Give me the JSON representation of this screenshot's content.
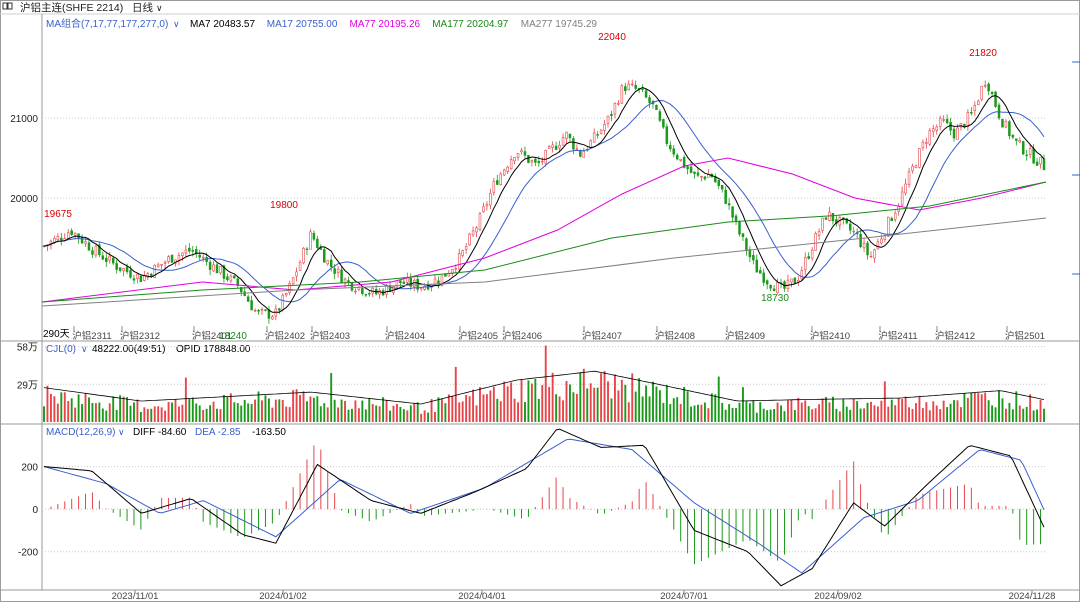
{
  "header": {
    "title": "沪铝主连(SHFE 2214)",
    "period": "日线"
  },
  "ma_legend": {
    "group": "MA组合(7,17,77,177,277,0)",
    "items": [
      {
        "label": "MA7 20483.57",
        "color": "#000000"
      },
      {
        "label": "MA17 20755.00",
        "color": "#3a5fcd"
      },
      {
        "label": "MA77 20195.26",
        "color": "#e000e0"
      },
      {
        "label": "MA177 20204.97",
        "color": "#1a8a1a"
      },
      {
        "label": "MA277 19745.29",
        "color": "#808080"
      }
    ]
  },
  "vol_legend": {
    "name": "CJL(0)",
    "value": "48222.00(49:51)",
    "opid": "OPID 178848.00"
  },
  "macd_legend": {
    "name": "MACD(12,26,9)",
    "diff": "DIFF -84.60",
    "dea": "DEA -2.85",
    "macd": "-163.50"
  },
  "colors": {
    "up": "#e8454a",
    "down": "#1a9a1a",
    "grid": "#c8c8c8",
    "axis": "#555555"
  },
  "chart_data": [
    {
      "type": "candlestick",
      "title": "沪铝主连(SHFE 2214) 日线",
      "price_range": [
        18500,
        22300
      ],
      "y_ticks": [
        20000,
        21000
      ],
      "days_label": "290天",
      "month_labels": [
        "沪铝2311",
        "沪铝2312",
        "沪铝2401",
        "沪铝2402",
        "沪铝2403",
        "沪铝2404",
        "沪铝2405",
        "沪铝2406",
        "沪铝2407",
        "沪铝2408",
        "沪铝2409",
        "沪铝2410",
        "沪铝2411",
        "沪铝2412",
        "沪铝2501"
      ],
      "annotations": [
        {
          "label": "19675",
          "value": 19675
        },
        {
          "label": "19800",
          "value": 19800
        },
        {
          "label": "18240",
          "value": 18240
        },
        {
          "label": "22040",
          "value": 22040
        },
        {
          "label": "18730",
          "value": 18730
        },
        {
          "label": "21820",
          "value": 21820
        }
      ],
      "price_path": [
        {
          "x": "2023/09/15",
          "y": 19400
        },
        {
          "x": "2023/09/22",
          "y": 19500
        },
        {
          "x": "2023/09/28",
          "y": 19600
        },
        {
          "x": "2023/10/09",
          "y": 19350
        },
        {
          "x": "2023/10/20",
          "y": 19150
        },
        {
          "x": "2023/11/01",
          "y": 19000
        },
        {
          "x": "2023/11/15",
          "y": 19250
        },
        {
          "x": "2023/11/25",
          "y": 19350
        },
        {
          "x": "2023/12/08",
          "y": 19100
        },
        {
          "x": "2023/12/18",
          "y": 18900
        },
        {
          "x": "2023/12/27",
          "y": 18550
        },
        {
          "x": "2024/01/05",
          "y": 18550
        },
        {
          "x": "2024/01/12",
          "y": 18900
        },
        {
          "x": "2024/01/22",
          "y": 19550
        },
        {
          "x": "2024/01/30",
          "y": 19200
        },
        {
          "x": "2024/02/08",
          "y": 18950
        },
        {
          "x": "2024/02/22",
          "y": 18800
        },
        {
          "x": "2024/03/05",
          "y": 18950
        },
        {
          "x": "2024/03/15",
          "y": 18900
        },
        {
          "x": "2024/03/25",
          "y": 19000
        },
        {
          "x": "2024/04/03",
          "y": 19250
        },
        {
          "x": "2024/04/12",
          "y": 19700
        },
        {
          "x": "2024/04/20",
          "y": 20200
        },
        {
          "x": "2024/04/30",
          "y": 20600
        },
        {
          "x": "2024/05/10",
          "y": 20400
        },
        {
          "x": "2024/05/17",
          "y": 20600
        },
        {
          "x": "2024/05/24",
          "y": 20800
        },
        {
          "x": "2024/05/31",
          "y": 20550
        },
        {
          "x": "2024/06/07",
          "y": 20750
        },
        {
          "x": "2024/06/14",
          "y": 21000
        },
        {
          "x": "2024/06/21",
          "y": 21400
        },
        {
          "x": "2024/06/28",
          "y": 21350
        },
        {
          "x": "2024/07/05",
          "y": 21150
        },
        {
          "x": "2024/07/12",
          "y": 20700
        },
        {
          "x": "2024/07/19",
          "y": 20450
        },
        {
          "x": "2024/07/26",
          "y": 20250
        },
        {
          "x": "2024/08/02",
          "y": 20300
        },
        {
          "x": "2024/08/09",
          "y": 20000
        },
        {
          "x": "2024/08/16",
          "y": 19550
        },
        {
          "x": "2024/08/23",
          "y": 19150
        },
        {
          "x": "2024/08/30",
          "y": 18950
        },
        {
          "x": "2024/09/06",
          "y": 18850
        },
        {
          "x": "2024/09/13",
          "y": 19000
        },
        {
          "x": "2024/09/20",
          "y": 19400
        },
        {
          "x": "2024/09/27",
          "y": 19800
        },
        {
          "x": "2024/10/11",
          "y": 19550
        },
        {
          "x": "2024/10/18",
          "y": 19250
        },
        {
          "x": "2024/10/25",
          "y": 19600
        },
        {
          "x": "2024/11/01",
          "y": 19950
        },
        {
          "x": "2024/11/08",
          "y": 20400
        },
        {
          "x": "2024/11/15",
          "y": 20800
        },
        {
          "x": "2024/11/22",
          "y": 20950
        },
        {
          "x": "2024/11/28",
          "y": 20800
        },
        {
          "x": "2024/12/06",
          "y": 21050
        },
        {
          "x": "2024/12/13",
          "y": 21500
        },
        {
          "x": "2024/12/20",
          "y": 21000
        },
        {
          "x": "2024/12/27",
          "y": 20700
        },
        {
          "x": "2025/01/03",
          "y": 20550
        },
        {
          "x": "2025/01/10",
          "y": 20400
        }
      ],
      "ma_lines": [
        {
          "name": "MA77",
          "color": "#e000e0",
          "points": [
            {
              "x": "2023/09/15",
              "y": 18700
            },
            {
              "x": "2023/12/01",
              "y": 18950
            },
            {
              "x": "2024/01/15",
              "y": 18850
            },
            {
              "x": "2024/03/01",
              "y": 18950
            },
            {
              "x": "2024/04/15",
              "y": 19250
            },
            {
              "x": "2024/05/20",
              "y": 19600
            },
            {
              "x": "2024/06/20",
              "y": 20050
            },
            {
              "x": "2024/07/20",
              "y": 20400
            },
            {
              "x": "2024/08/10",
              "y": 20500
            },
            {
              "x": "2024/09/10",
              "y": 20300
            },
            {
              "x": "2024/10/10",
              "y": 20000
            },
            {
              "x": "2024/11/10",
              "y": 19850
            },
            {
              "x": "2024/12/10",
              "y": 20000
            },
            {
              "x": "2025/01/10",
              "y": 20200
            }
          ]
        },
        {
          "name": "MA177",
          "color": "#1a8a1a",
          "points": [
            {
              "x": "2023/09/15",
              "y": 18700
            },
            {
              "x": "2023/12/01",
              "y": 18850
            },
            {
              "x": "2024/02/15",
              "y": 18950
            },
            {
              "x": "2024/04/15",
              "y": 19100
            },
            {
              "x": "2024/06/15",
              "y": 19500
            },
            {
              "x": "2024/08/10",
              "y": 19700
            },
            {
              "x": "2024/09/30",
              "y": 19780
            },
            {
              "x": "2024/11/15",
              "y": 19900
            },
            {
              "x": "2025/01/10",
              "y": 20200
            }
          ]
        },
        {
          "name": "MA277",
          "color": "#808080",
          "points": [
            {
              "x": "2023/09/15",
              "y": 18650
            },
            {
              "x": "2024/01/15",
              "y": 18850
            },
            {
              "x": "2024/04/15",
              "y": 18950
            },
            {
              "x": "2024/07/15",
              "y": 19250
            },
            {
              "x": "2024/10/15",
              "y": 19500
            },
            {
              "x": "2025/01/10",
              "y": 19750
            }
          ]
        }
      ]
    },
    {
      "type": "bar",
      "title": "CJL(0)",
      "y_ticks": [
        {
          "label": "29万",
          "value": 290000
        },
        {
          "label": "58万",
          "value": 580000
        }
      ],
      "volume_range": [
        0,
        600000
      ],
      "volume_path": [
        {
          "x": "2023/09/15",
          "y": 230000
        },
        {
          "x": "2023/11/01",
          "y": 140000
        },
        {
          "x": "2024/01/22",
          "y": 200000
        },
        {
          "x": "2024/03/15",
          "y": 120000
        },
        {
          "x": "2024/04/30",
          "y": 280000
        },
        {
          "x": "2024/06/07",
          "y": 340000
        },
        {
          "x": "2024/07/05",
          "y": 260000
        },
        {
          "x": "2024/08/15",
          "y": 140000
        },
        {
          "x": "2024/09/15",
          "y": 150000
        },
        {
          "x": "2024/11/01",
          "y": 160000
        },
        {
          "x": "2024/12/20",
          "y": 210000
        },
        {
          "x": "2025/01/10",
          "y": 150000
        }
      ]
    },
    {
      "type": "macd",
      "title": "MACD(12,26,9)",
      "y_ticks": [
        200,
        0,
        -200
      ],
      "range": [
        -380,
        400
      ],
      "dates": [
        "2023/11/01",
        "2024/01/02",
        "2024/04/01",
        "2024/07/01",
        "2024/09/02",
        "2024/11/28"
      ],
      "diff_path": [
        {
          "x": "2023/09/15",
          "y": 200
        },
        {
          "x": "2023/10/08",
          "y": 180
        },
        {
          "x": "2023/11/01",
          "y": -20
        },
        {
          "x": "2023/11/25",
          "y": 50
        },
        {
          "x": "2023/12/20",
          "y": -120
        },
        {
          "x": "2024/01/05",
          "y": -160
        },
        {
          "x": "2024/01/25",
          "y": 210
        },
        {
          "x": "2024/02/20",
          "y": 40
        },
        {
          "x": "2024/03/15",
          "y": -20
        },
        {
          "x": "2024/04/10",
          "y": 80
        },
        {
          "x": "2024/05/05",
          "y": 190
        },
        {
          "x": "2024/05/20",
          "y": 380
        },
        {
          "x": "2024/06/10",
          "y": 290
        },
        {
          "x": "2024/07/01",
          "y": 300
        },
        {
          "x": "2024/07/25",
          "y": -100
        },
        {
          "x": "2024/08/20",
          "y": -200
        },
        {
          "x": "2024/09/05",
          "y": -360
        },
        {
          "x": "2024/09/20",
          "y": -280
        },
        {
          "x": "2024/10/10",
          "y": 30
        },
        {
          "x": "2024/10/25",
          "y": -80
        },
        {
          "x": "2024/11/15",
          "y": 120
        },
        {
          "x": "2024/12/05",
          "y": 300
        },
        {
          "x": "2024/12/25",
          "y": 250
        },
        {
          "x": "2025/01/10",
          "y": -85
        }
      ],
      "dea_path": [
        {
          "x": "2023/09/15",
          "y": 200
        },
        {
          "x": "2023/10/15",
          "y": 120
        },
        {
          "x": "2023/11/10",
          "y": -20
        },
        {
          "x": "2023/12/01",
          "y": 40
        },
        {
          "x": "2024/01/05",
          "y": -130
        },
        {
          "x": "2024/02/05",
          "y": 140
        },
        {
          "x": "2024/03/10",
          "y": -20
        },
        {
          "x": "2024/04/15",
          "y": 100
        },
        {
          "x": "2024/05/25",
          "y": 330
        },
        {
          "x": "2024/06/25",
          "y": 280
        },
        {
          "x": "2024/07/25",
          "y": 30
        },
        {
          "x": "2024/08/25",
          "y": -160
        },
        {
          "x": "2024/09/15",
          "y": -300
        },
        {
          "x": "2024/10/15",
          "y": -40
        },
        {
          "x": "2024/11/10",
          "y": 40
        },
        {
          "x": "2024/12/10",
          "y": 280
        },
        {
          "x": "2024/12/30",
          "y": 230
        },
        {
          "x": "2025/01/10",
          "y": -3
        }
      ]
    }
  ]
}
